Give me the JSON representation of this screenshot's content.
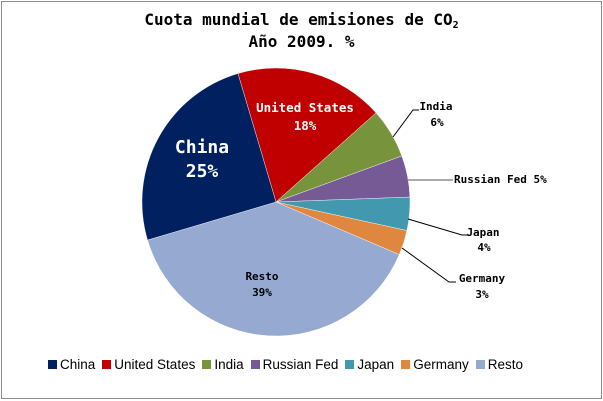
{
  "chart_data": {
    "type": "pie",
    "title": "Cuota mundial de emisiones de CO2",
    "title_main": "Cuota mundial de emisiones de CO",
    "title_subscript": "2",
    "subtitle": "Año 2009. %",
    "categories": [
      "China",
      "United States",
      "India",
      "Russian Fed",
      "Japan",
      "Germany",
      "Resto"
    ],
    "values": [
      25,
      18,
      6,
      5,
      4,
      3,
      39
    ],
    "unit": "%",
    "colors": [
      "#002060",
      "#C00000",
      "#77933C",
      "#765A96",
      "#4198AF",
      "#E0873F",
      "#95A9D1"
    ],
    "data_labels": [
      {
        "name": "China",
        "value": "25%",
        "position": "inside"
      },
      {
        "name": "United States",
        "value": "18%",
        "position": "inside"
      },
      {
        "name": "India",
        "value": "6%",
        "position": "outside"
      },
      {
        "name": "Russian Fed",
        "value": "5%",
        "position": "outside"
      },
      {
        "name": "Japan",
        "value": "4%",
        "position": "outside"
      },
      {
        "name": "Germany",
        "value": "3%",
        "position": "outside"
      },
      {
        "name": "Resto",
        "value": "39%",
        "position": "inside"
      }
    ],
    "legend_position": "bottom",
    "slice_draw_order": [
      "United States",
      "India",
      "Russian Fed",
      "Japan",
      "Germany",
      "Resto",
      "China"
    ],
    "start_angle_deg": -16.5
  },
  "legend": [
    {
      "label": "China",
      "color": "#002060"
    },
    {
      "label": "United States",
      "color": "#C00000"
    },
    {
      "label": "India",
      "color": "#77933C"
    },
    {
      "label": "Russian Fed",
      "color": "#765A96"
    },
    {
      "label": "Japan",
      "color": "#4198AF"
    },
    {
      "label": "Germany",
      "color": "#E0873F"
    },
    {
      "label": "Resto",
      "color": "#95A9D1"
    }
  ],
  "labels": {
    "china_name": "China",
    "china_pct": "25%",
    "us_name": "United States",
    "us_pct": "18%",
    "india_name": "India",
    "india_pct": "6%",
    "russia_text": "Russian Fed 5%",
    "japan_name": "Japan",
    "japan_pct": "4%",
    "germany_name": "Germany",
    "germany_pct": "3%",
    "resto_name": "Resto",
    "resto_pct": "39%"
  }
}
